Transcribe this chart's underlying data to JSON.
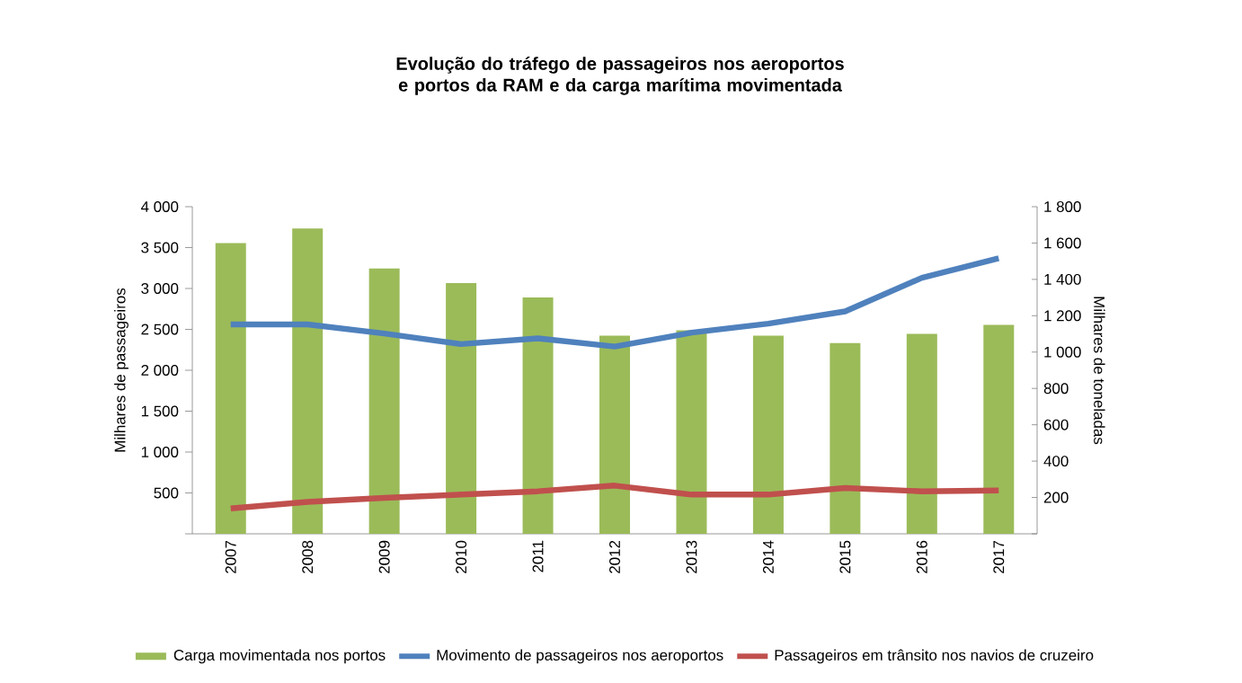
{
  "chart_data": {
    "type": "bar",
    "title": "Evolução do tráfego de passageiros nos aeroportos e portos da RAM e da carga marítima movimentada",
    "categories": [
      "2007",
      "2008",
      "2009",
      "2010",
      "2011",
      "2012",
      "2013",
      "2014",
      "2015",
      "2016",
      "2017"
    ],
    "series": [
      {
        "name": "Carga movimentada nos portos",
        "axis": "y2",
        "color": "#9bbb59",
        "values": [
          1600,
          1680,
          1460,
          1380,
          1300,
          1090,
          1120,
          1090,
          1050,
          1100,
          1150
        ]
      },
      {
        "name": "Movimento de passageiros nos aeroportos",
        "type": "line",
        "color": "#4f81bd",
        "values": [
          2560,
          2560,
          2450,
          2320,
          2390,
          2290,
          2460,
          2570,
          2720,
          3130,
          3370
        ]
      },
      {
        "name": "Passageiros em trânsito nos navios de cruzeiro",
        "type": "line",
        "color": "#c0504d",
        "values": [
          310,
          390,
          440,
          480,
          520,
          590,
          480,
          480,
          560,
          520,
          530
        ]
      }
    ],
    "ylabel": "Milhares de passageiros",
    "y2label": "Milhares de toneladas",
    "ylim": [
      0,
      4000
    ],
    "yticks": [
      {
        "value": 0,
        "label": null
      },
      500,
      {
        "value": 1000,
        "label": "1 000"
      },
      {
        "value": 1500,
        "label": "1 500"
      },
      {
        "value": 2000,
        "label": "2 000"
      },
      {
        "value": 2500,
        "label": "2 500"
      },
      {
        "value": 3000,
        "label": "3 000"
      },
      {
        "value": 3500,
        "label": "3 500"
      },
      {
        "value": 4000,
        "label": "4 000"
      }
    ],
    "y2lim": [
      0,
      1800
    ],
    "y2ticks": [
      {
        "value": 0,
        "label": null
      },
      200,
      400,
      600,
      800,
      {
        "value": 1000,
        "label": "1 000"
      },
      {
        "value": 1200,
        "label": "1 200"
      },
      {
        "value": 1400,
        "label": "1 400"
      },
      {
        "value": 1600,
        "label": "1 600"
      },
      {
        "value": 1800,
        "label": "1 800"
      }
    ],
    "grid": false,
    "legend": "bottom",
    "marker": "none",
    "line_style": "solid"
  }
}
